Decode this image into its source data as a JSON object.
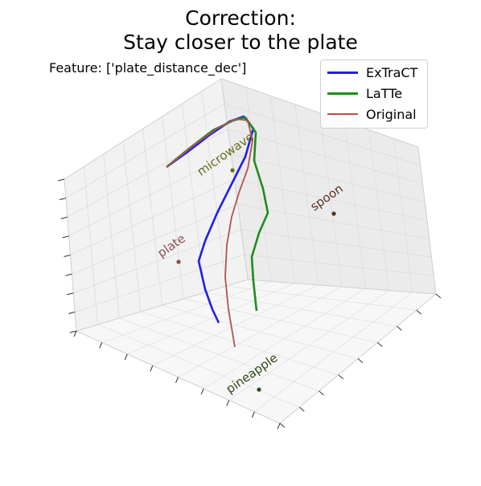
{
  "chart_data": {
    "type": "line",
    "title": [
      "Correction:",
      "Stay closer to the plate"
    ],
    "feature_label": "Feature: ['plate_distance_dec']",
    "legend_position": "top-right",
    "grid": true,
    "series": [
      {
        "name": "ExTraCT",
        "color": "#1f1fe8",
        "points": [
          [
            207,
            208
          ],
          [
            232,
            190
          ],
          [
            262,
            167
          ],
          [
            286,
            151
          ],
          [
            303,
            145
          ],
          [
            315,
            160
          ],
          [
            305,
            195
          ],
          [
            290,
            225
          ],
          [
            270,
            265
          ],
          [
            255,
            300
          ],
          [
            247,
            325
          ],
          [
            255,
            360
          ],
          [
            264,
            385
          ],
          [
            272,
            402
          ]
        ]
      },
      {
        "name": "LaTTe",
        "color": "#1e8c1e",
        "points": [
          [
            207,
            208
          ],
          [
            235,
            185
          ],
          [
            265,
            162
          ],
          [
            290,
            150
          ],
          [
            305,
            146
          ],
          [
            318,
            165
          ],
          [
            316,
            200
          ],
          [
            327,
            235
          ],
          [
            333,
            265
          ],
          [
            322,
            290
          ],
          [
            313,
            320
          ],
          [
            315,
            350
          ],
          [
            319,
            387
          ]
        ]
      },
      {
        "name": "Original",
        "color": "#b55050",
        "points": [
          [
            207,
            208
          ],
          [
            242,
            180
          ],
          [
            270,
            160
          ],
          [
            293,
            148
          ],
          [
            308,
            150
          ],
          [
            314,
            175
          ],
          [
            308,
            210
          ],
          [
            297,
            240
          ],
          [
            288,
            270
          ],
          [
            282,
            305
          ],
          [
            280,
            345
          ],
          [
            284,
            385
          ],
          [
            292,
            432
          ]
        ]
      }
    ],
    "objects": [
      {
        "name": "microwave",
        "color": "#6b6b1e",
        "point": [
          289,
          212
        ]
      },
      {
        "name": "spoon",
        "color": "#5a3020",
        "point": [
          415,
          266
        ]
      },
      {
        "name": "plate",
        "color": "#8b5050",
        "point": [
          222,
          326
        ]
      },
      {
        "name": "pineapple",
        "color": "#2d4a1a",
        "point": [
          322,
          485
        ]
      }
    ]
  }
}
